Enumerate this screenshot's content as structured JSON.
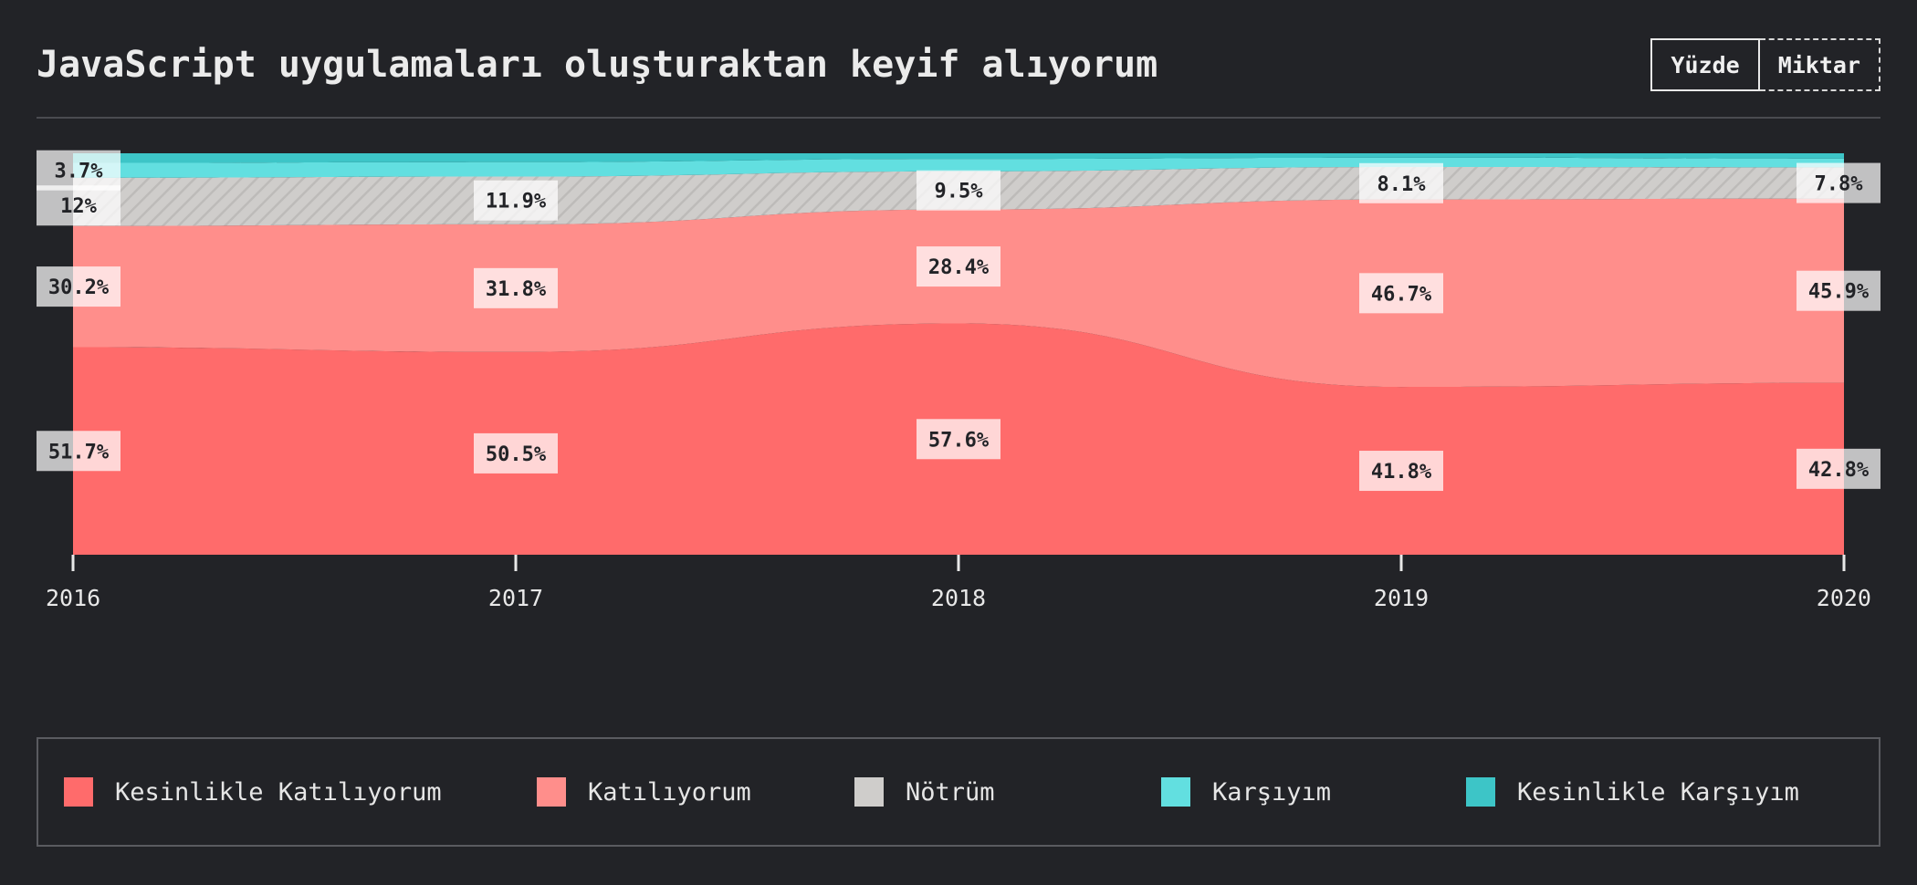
{
  "header": {
    "title": "JavaScript uygulamaları oluşturaktan keyif alıyorum",
    "toggle": {
      "percent_label": "Yüzde",
      "amount_label": "Miktar",
      "active": "percent"
    }
  },
  "chart_data": {
    "type": "area",
    "stacked": true,
    "normalized": true,
    "x": [
      "2016",
      "2017",
      "2018",
      "2019",
      "2020"
    ],
    "series": [
      {
        "name": "Kesinlikle Katılıyorum",
        "color": "#ff6b6b",
        "values": [
          51.7,
          50.5,
          57.6,
          41.8,
          42.8
        ],
        "labels": [
          "51.7%",
          "50.5%",
          "57.6%",
          "41.8%",
          "42.8%"
        ]
      },
      {
        "name": "Katılıyorum",
        "color": "#ff8e8b",
        "values": [
          30.2,
          31.8,
          28.4,
          46.7,
          45.9
        ],
        "labels": [
          "30.2%",
          "31.8%",
          "28.4%",
          "46.7%",
          "45.9%"
        ]
      },
      {
        "name": "Nötrüm",
        "color": "#cfcdcb",
        "pattern": "hatched",
        "values": [
          12,
          11.9,
          9.5,
          8.1,
          7.8
        ],
        "labels": [
          "12%",
          "11.9%",
          "9.5%",
          "8.1%",
          "7.8%"
        ]
      },
      {
        "name": "Karşıyım",
        "color": "#62dfe0",
        "values": [
          3.7,
          3.6,
          3.1,
          2.3,
          2.2
        ],
        "labels": [
          "3.7%",
          "",
          "",
          "",
          ""
        ]
      },
      {
        "name": "Kesinlikle Karşıyım",
        "color": "#3dc5c7",
        "values": [
          2.4,
          2.2,
          1.4,
          1.1,
          1.3
        ],
        "labels": [
          "",
          "",
          "",
          "",
          ""
        ]
      }
    ],
    "ylim": [
      0,
      100
    ],
    "legend": "bottom",
    "grid": false
  },
  "colors": {
    "background": "#222327",
    "text": "#e8e8e8",
    "label_bg": "#ffffff"
  }
}
